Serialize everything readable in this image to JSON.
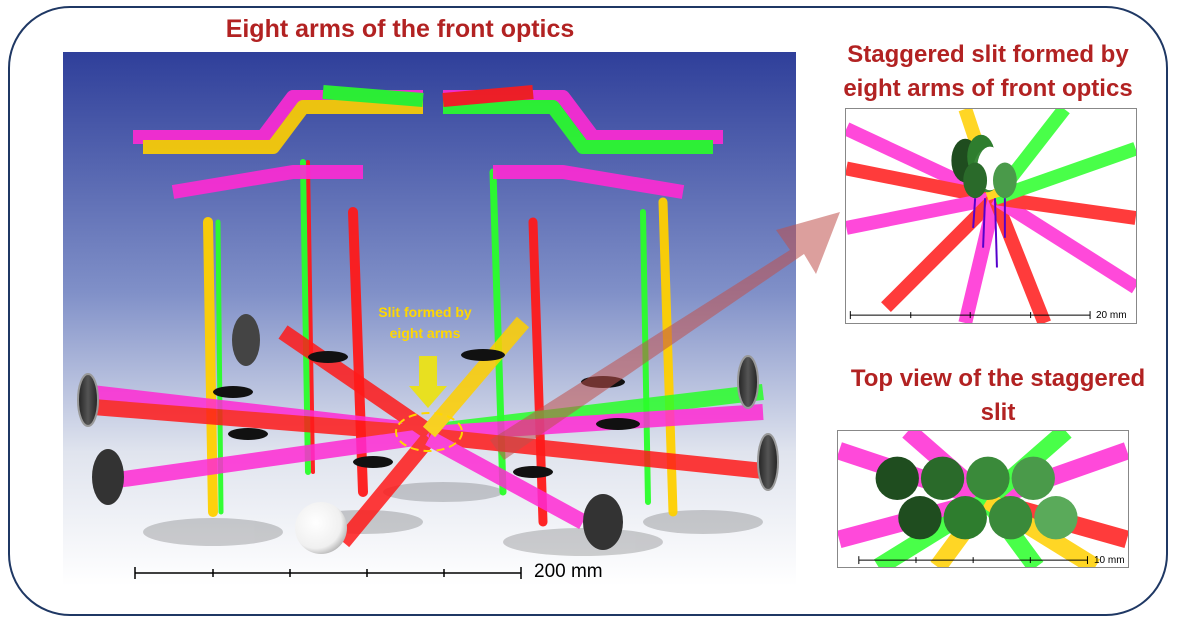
{
  "titles": {
    "main": "Eight arms of the front optics",
    "staggered_slit": "Staggered slit formed by eight arms of front optics",
    "top_view": "Top view of the staggered slit"
  },
  "annotations": {
    "slit_formed": "Slit formed by eight arms"
  },
  "scales": {
    "main": "200 mm",
    "inset_top": "20 mm",
    "inset_bottom": "10 mm"
  },
  "colors": {
    "title": "#b22222",
    "frame": "#1f3864",
    "beam_red": "#ff1a1a",
    "beam_green": "#2aff2a",
    "beam_magenta": "#ff2ad4",
    "beam_yellow": "#ffd000",
    "slit_annotation": "#ffd700",
    "arrow": "#c0504d"
  }
}
